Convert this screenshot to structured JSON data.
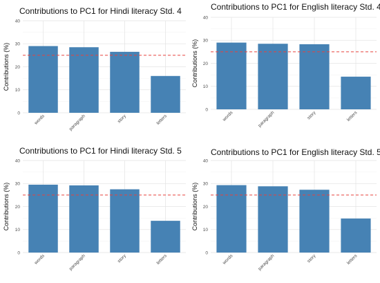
{
  "chart_data": [
    {
      "type": "bar",
      "title": "Contributions to PC1 for Hindi literacy Std. 4",
      "xlabel": "",
      "ylabel": "Contributions (%)",
      "categories": [
        "words",
        "paragraph",
        "story",
        "letters"
      ],
      "values": [
        29,
        28.5,
        26.5,
        16
      ],
      "ylim": [
        0,
        40
      ],
      "yticks": [
        0,
        10,
        20,
        30,
        40
      ],
      "reference_line": 25,
      "grid": true,
      "bar_color": "#4682B4",
      "reference_color": "#E8413C"
    },
    {
      "type": "bar",
      "title": "Contributions to PC1 for English literacy Std. 4",
      "xlabel": "",
      "ylabel": "Contributions (%)",
      "categories": [
        "words",
        "paragraph",
        "story",
        "letters"
      ],
      "values": [
        29,
        28.5,
        28.3,
        14.2
      ],
      "ylim": [
        0,
        40
      ],
      "yticks": [
        0,
        10,
        20,
        30,
        40
      ],
      "reference_line": 25,
      "grid": true,
      "bar_color": "#4682B4",
      "reference_color": "#E8413C"
    },
    {
      "type": "bar",
      "title": "Contributions to PC1 for Hindi literacy Std. 5",
      "xlabel": "",
      "ylabel": "Contributions (%)",
      "categories": [
        "words",
        "paragraph",
        "story",
        "letters"
      ],
      "values": [
        29.5,
        29.2,
        27.5,
        13.8
      ],
      "ylim": [
        0,
        40
      ],
      "yticks": [
        0,
        10,
        20,
        30,
        40
      ],
      "reference_line": 25,
      "grid": true,
      "bar_color": "#4682B4",
      "reference_color": "#E8413C"
    },
    {
      "type": "bar",
      "title": "Contributions to PC1 for English literacy Std. 5",
      "xlabel": "",
      "ylabel": "Contributions (%)",
      "categories": [
        "words",
        "paragraph",
        "story",
        "letters"
      ],
      "values": [
        29.3,
        28.8,
        27.3,
        14.8
      ],
      "ylim": [
        0,
        40
      ],
      "yticks": [
        0,
        10,
        20,
        30,
        40
      ],
      "reference_line": 25,
      "grid": true,
      "bar_color": "#4682B4",
      "reference_color": "#E8413C"
    }
  ]
}
